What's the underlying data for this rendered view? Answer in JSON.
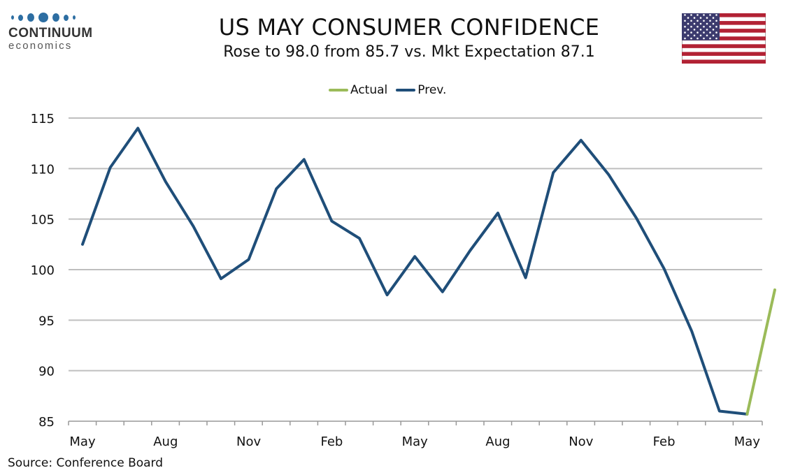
{
  "logo": {
    "word": "CONTINUUM",
    "sub": "economics"
  },
  "header": {
    "title": "US MAY CONSUMER CONFIDENCE",
    "subtitle": "Rose to 98.0 from 85.7 vs. Mkt Expectation 87.1"
  },
  "source": "Source: Conference Board",
  "colors": {
    "actual": "#9bbb59",
    "prev": "#1f4e79",
    "grid": "#bfbfbf",
    "flag_red": "#b22234",
    "flag_blue": "#3c3b6e"
  },
  "chart_data": {
    "type": "line",
    "title": "US MAY CONSUMER CONFIDENCE",
    "subtitle": "Rose to 98.0 from 85.7 vs. Mkt Expectation 87.1",
    "xlabel": "",
    "ylabel": "",
    "ylim": [
      85,
      115
    ],
    "yticks": [
      85,
      90,
      95,
      100,
      105,
      110,
      115
    ],
    "x_tick_labels": [
      "May",
      "Aug",
      "Nov",
      "Feb",
      "May",
      "Aug",
      "Nov",
      "Feb",
      "May"
    ],
    "grid": "horizontal",
    "legend_position": "top-center",
    "series": [
      {
        "name": "Actual",
        "color": "#9bbb59",
        "x_index": [
          24,
          25
        ],
        "values": [
          85.7,
          98.0
        ]
      },
      {
        "name": "Prev.",
        "color": "#1f4e79",
        "x_index": [
          0,
          1,
          2,
          3,
          4,
          5,
          6,
          7,
          8,
          9,
          10,
          11,
          12,
          13,
          14,
          15,
          16,
          17,
          18,
          19,
          20,
          21,
          22,
          23,
          24
        ],
        "values": [
          102.5,
          110.1,
          114.0,
          108.7,
          104.3,
          99.1,
          101.0,
          108.0,
          110.9,
          104.8,
          103.1,
          97.5,
          101.3,
          97.8,
          101.9,
          105.6,
          99.2,
          109.6,
          112.8,
          109.4,
          105.1,
          100.1,
          93.9,
          86.0,
          85.7
        ]
      }
    ]
  }
}
